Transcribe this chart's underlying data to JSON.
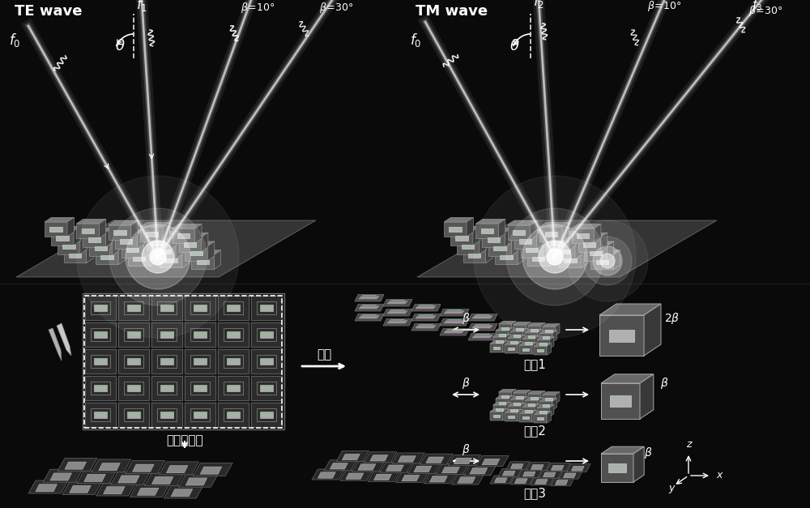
{
  "bg_color": "#0a0a0a",
  "top_left_label": "TE wave",
  "top_right_label": "TM wave",
  "bottom_labels": [
    "二维超表面",
    "折叠",
    "模式1",
    "模式2",
    "模式3"
  ],
  "cell_color_top": "#7a7a7a",
  "cell_color_front": "#555555",
  "cell_color_right": "#3a3a3a",
  "cell_edge_color": "#aaaaaa",
  "cell_inner_color": "#cccccc",
  "ground_color": "#808080",
  "beam_color": "#ffffff",
  "panel_bg": "#2a2a2a",
  "panel_edge": "#888888"
}
